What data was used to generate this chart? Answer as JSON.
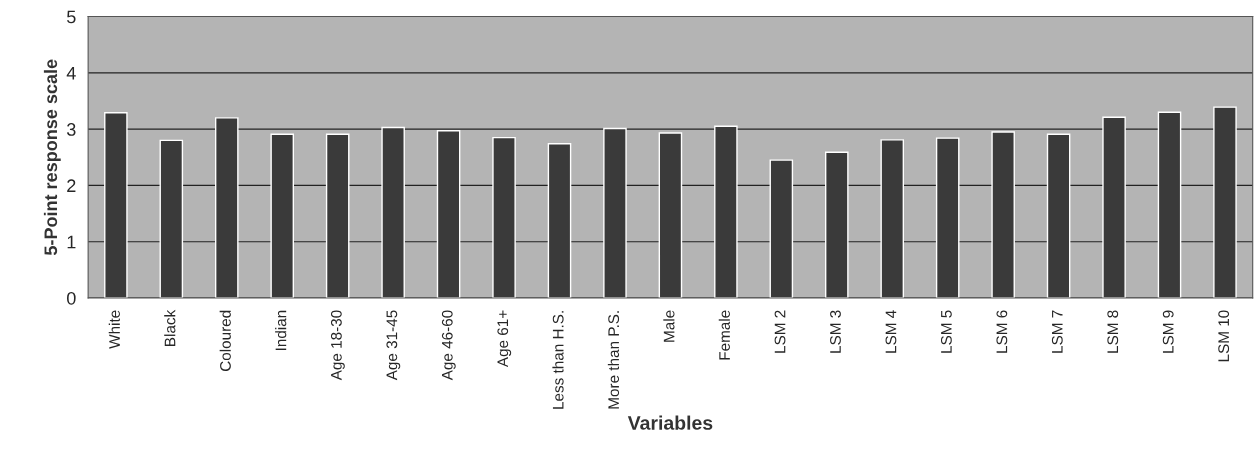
{
  "chart_data": {
    "type": "bar",
    "xlabel": "Variables",
    "ylabel": "5-Point response scale",
    "categories": [
      "White",
      "Black",
      "Coloured",
      "Indian",
      "Age 18-30",
      "Age 31-45",
      "Age 46-60",
      "Age 61+",
      "Less than H.S.",
      "More than P.S.",
      "Male",
      "Female",
      "LSM 2",
      "LSM 3",
      "LSM 4",
      "LSM 5",
      "LSM 6",
      "LSM 7",
      "LSM 8",
      "LSM 9",
      "LSM 10"
    ],
    "values": [
      3.29,
      2.8,
      3.2,
      2.91,
      2.91,
      3.03,
      2.97,
      2.85,
      2.74,
      3.01,
      2.93,
      3.05,
      2.45,
      2.59,
      2.81,
      2.84,
      2.95,
      2.91,
      3.21,
      3.3,
      3.39
    ],
    "color": "#3a3a3a",
    "ylim": [
      0,
      5
    ],
    "yticks": [
      0,
      1,
      2,
      3,
      4,
      5
    ],
    "grid": "y"
  }
}
